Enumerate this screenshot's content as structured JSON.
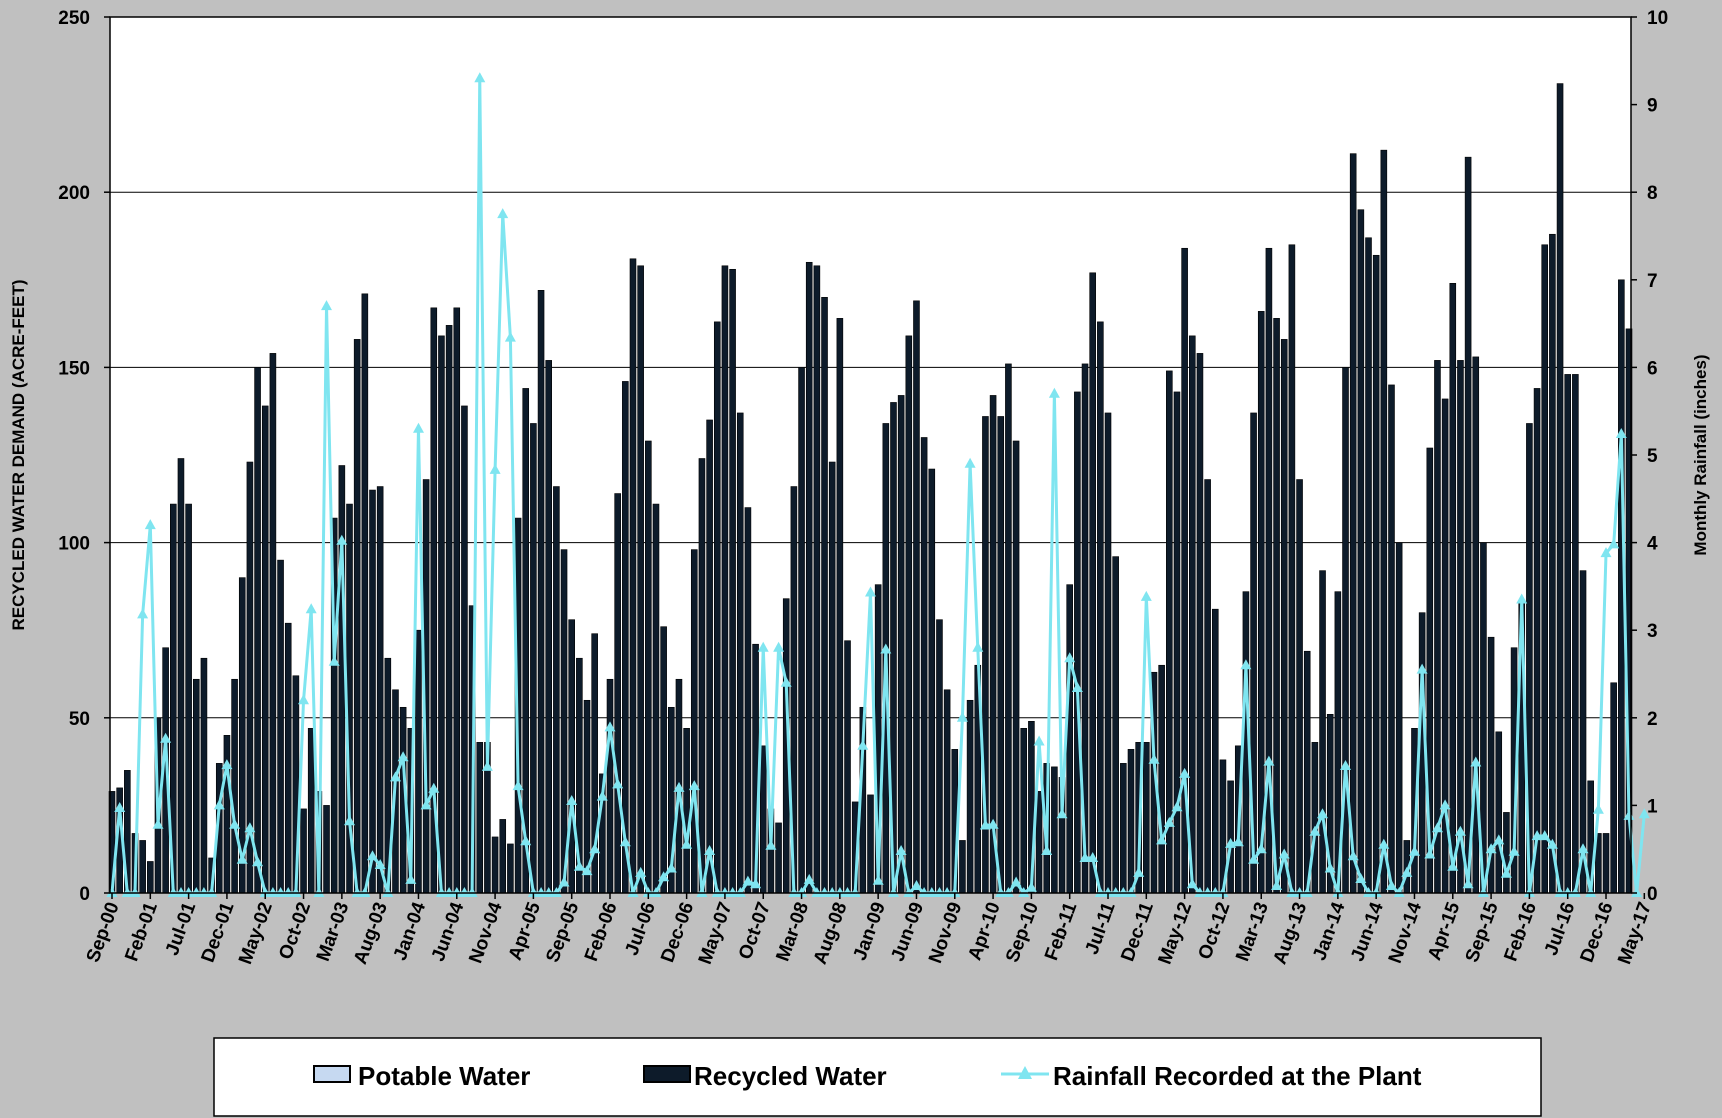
{
  "chart_data": {
    "type": "bar",
    "title": "",
    "ylabel": "RECYCLED WATER DEMAND (ACRE-FEET)",
    "y2label": "Monthly Rainfall (inches)",
    "ylim": [
      0,
      250
    ],
    "y2lim": [
      0,
      10
    ],
    "yticks": [
      0,
      50,
      100,
      150,
      200,
      250
    ],
    "y2ticks": [
      0,
      1,
      2,
      3,
      4,
      5,
      6,
      7,
      8,
      9,
      10
    ],
    "grid": true,
    "legend_position": "bottom",
    "start_month": "Sep-00",
    "end_month": "May-17",
    "x_tick_labels": [
      "Sep-00",
      "Feb-01",
      "Jul-01",
      "Dec-01",
      "May-02",
      "Oct-02",
      "Mar-03",
      "Aug-03",
      "Jan-04",
      "Jun-04",
      "Nov-04",
      "Apr-05",
      "Sep-05",
      "Feb-06",
      "Jul-06",
      "Dec-06",
      "May-07",
      "Oct-07",
      "Mar-08",
      "Aug-08",
      "Jan-09",
      "Jun-09",
      "Nov-09",
      "Apr-10",
      "Sep-10",
      "Feb-11",
      "Jul-11",
      "Dec-11",
      "May-12",
      "Oct-12",
      "Mar-13",
      "Aug-13",
      "Jan-14",
      "Jun-14",
      "Nov-14",
      "Apr-15",
      "Sep-15",
      "Feb-16",
      "Jul-16",
      "Dec-16",
      "May-17"
    ],
    "series": [
      {
        "name": "Potable Water",
        "type": "bar",
        "color": "#c6d9f1",
        "values": []
      },
      {
        "name": "Recycled Water",
        "type": "bar",
        "color": "#0d1b2a",
        "values": [
          29,
          30,
          35,
          17,
          15,
          9,
          50,
          70,
          111,
          124,
          111,
          61,
          67,
          10,
          37,
          45,
          61,
          90,
          123,
          150,
          139,
          154,
          95,
          77,
          62,
          24,
          47,
          29,
          25,
          107,
          122,
          111,
          158,
          171,
          115,
          116,
          67,
          58,
          53,
          47,
          75,
          118,
          167,
          159,
          162,
          167,
          139,
          82,
          43,
          43,
          16,
          21,
          14,
          107,
          144,
          134,
          172,
          152,
          116,
          98,
          78,
          67,
          55,
          74,
          34,
          61,
          114,
          146,
          181,
          179,
          129,
          111,
          76,
          53,
          61,
          47,
          98,
          124,
          135,
          163,
          179,
          178,
          137,
          110,
          71,
          42,
          24,
          20,
          84,
          116,
          150,
          180,
          179,
          170,
          123,
          164,
          72,
          26,
          53,
          28,
          88,
          134,
          140,
          142,
          159,
          169,
          130,
          121,
          78,
          58,
          41,
          15,
          55,
          65,
          136,
          142,
          136,
          151,
          129,
          47,
          49,
          29,
          37,
          36,
          33,
          88,
          143,
          151,
          177,
          163,
          137,
          96,
          37,
          41,
          43,
          43,
          63,
          65,
          149,
          143,
          184,
          159,
          154,
          118,
          81,
          38,
          32,
          42,
          86,
          137,
          166,
          184,
          164,
          158,
          185,
          118,
          69,
          43,
          92,
          51,
          86,
          150,
          211,
          195,
          187,
          182,
          212,
          145,
          100,
          15,
          47,
          80,
          127,
          152,
          141,
          174,
          152,
          210,
          153,
          100,
          73,
          46,
          23,
          70,
          83,
          134,
          144,
          185,
          188,
          231,
          148,
          148,
          92,
          32,
          17,
          17,
          60,
          175,
          161
        ]
      },
      {
        "name": "Rainfall Recorded at the Plant",
        "type": "line",
        "axis": "right",
        "color": "#7fe5f0",
        "values": [
          0,
          0.97,
          0,
          0,
          3.18,
          4.2,
          0.78,
          1.76,
          0,
          0,
          0,
          0,
          0,
          0,
          1.0,
          1.46,
          0.78,
          0.38,
          0.74,
          0.35,
          0,
          0,
          0,
          0,
          0,
          2.2,
          3.24,
          0,
          6.7,
          2.64,
          4.02,
          0.82,
          0,
          0,
          0.42,
          0.32,
          0,
          1.32,
          1.55,
          0.15,
          5.3,
          1.0,
          1.19,
          0,
          0,
          0,
          0,
          0,
          9.3,
          1.44,
          4.83,
          7.75,
          6.34,
          1.22,
          0.59,
          0,
          0,
          0,
          0,
          0.12,
          1.05,
          0.3,
          0.25,
          0.5,
          1.1,
          1.89,
          1.24,
          0.58,
          0,
          0.23,
          0,
          0,
          0.18,
          0.28,
          1.2,
          0.55,
          1.22,
          0,
          0.48,
          0,
          0,
          0,
          0,
          0.13,
          0.1,
          2.8,
          0.54,
          2.8,
          2.4,
          0,
          0,
          0.15,
          0,
          0,
          0,
          0,
          0,
          0,
          1.68,
          3.43,
          0.14,
          2.78,
          0,
          0.48,
          0,
          0.08,
          0,
          0,
          0,
          0,
          0,
          2.0,
          4.9,
          2.8,
          0.77,
          0.78,
          0,
          0,
          0.12,
          0,
          0.06,
          1.73,
          0.48,
          5.7,
          0.9,
          2.68,
          2.34,
          0.4,
          0.4,
          0,
          0,
          0,
          0,
          0,
          0.23,
          3.38,
          1.52,
          0.6,
          0.8,
          0.98,
          1.36,
          0.1,
          0,
          0,
          0,
          0,
          0.56,
          0.58,
          2.6,
          0.38,
          0.5,
          1.5,
          0.08,
          0.44,
          0,
          0,
          0,
          0.7,
          0.9,
          0.28,
          0,
          1.45,
          0.42,
          0.16,
          0,
          0,
          0.55,
          0.08,
          0,
          0.23,
          0.47,
          2.55,
          0.44,
          0.74,
          1.0,
          0.3,
          0.7,
          0.1,
          1.49,
          0,
          0.5,
          0.6,
          0.22,
          0.47,
          3.35,
          0,
          0.65,
          0.65,
          0.55,
          0,
          0,
          0,
          0.5,
          0,
          0.95,
          3.88,
          3.98,
          5.24,
          0.88,
          0,
          0.9
        ]
      }
    ]
  }
}
